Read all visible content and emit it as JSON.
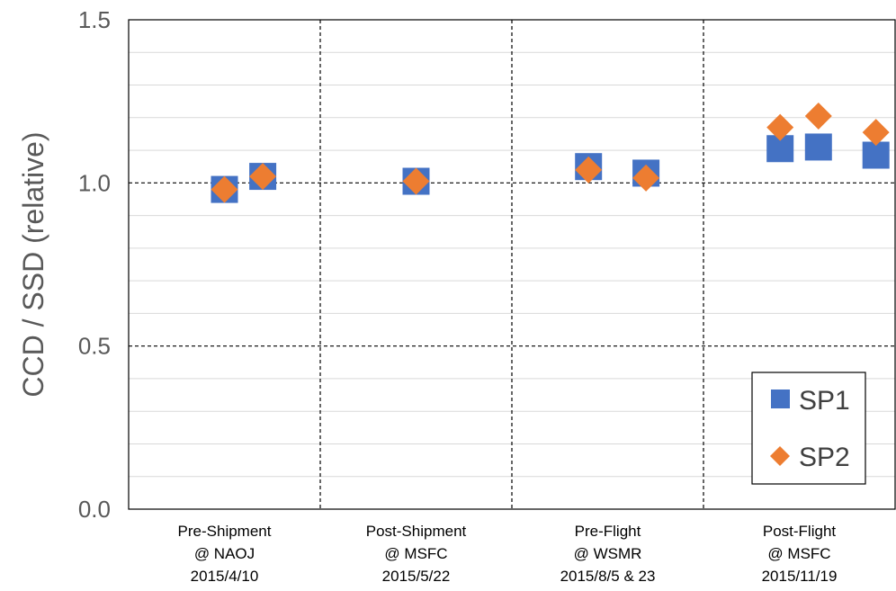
{
  "chart_data": {
    "type": "scatter",
    "title": "",
    "xlabel": "",
    "ylabel": "CCD / SSD (relative)",
    "ylim": [
      0.0,
      1.5
    ],
    "yticks": [
      "0.0",
      "0.5",
      "1.0",
      "1.5"
    ],
    "categories": [
      [
        "Pre-Shipment",
        "@ NAOJ",
        "2015/4/10"
      ],
      [
        "Post-Shipment",
        "@ MSFC",
        "2015/5/22"
      ],
      [
        "Pre-Flight",
        "@ WSMR",
        "2015/8/5 & 23"
      ],
      [
        "Post-Flight",
        "@ MSFC",
        "2015/11/19"
      ]
    ],
    "grid": "major dashed at 0.5, 1.0 and category boundaries; minor solid",
    "legend_position": "bottom-right",
    "series": [
      {
        "name": "SP1",
        "marker": "square",
        "color": "#4472C4",
        "points": [
          {
            "x": 1.0,
            "y": 0.98
          },
          {
            "x": 1.2,
            "y": 1.02
          },
          {
            "x": 2.0,
            "y": 1.005
          },
          {
            "x": 2.9,
            "y": 1.05
          },
          {
            "x": 3.2,
            "y": 1.03
          },
          {
            "x": 3.9,
            "y": 1.105
          },
          {
            "x": 4.1,
            "y": 1.11
          },
          {
            "x": 4.4,
            "y": 1.085
          }
        ]
      },
      {
        "name": "SP2",
        "marker": "diamond",
        "color": "#ED7D31",
        "points": [
          {
            "x": 1.0,
            "y": 0.98
          },
          {
            "x": 1.2,
            "y": 1.02
          },
          {
            "x": 2.0,
            "y": 1.005
          },
          {
            "x": 2.9,
            "y": 1.04
          },
          {
            "x": 3.2,
            "y": 1.015
          },
          {
            "x": 3.9,
            "y": 1.17
          },
          {
            "x": 4.1,
            "y": 1.205
          },
          {
            "x": 4.4,
            "y": 1.155
          }
        ]
      }
    ]
  }
}
